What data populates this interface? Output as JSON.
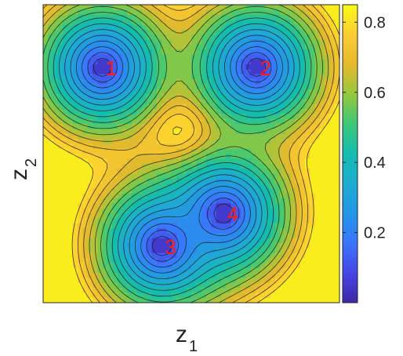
{
  "chart_data": {
    "type": "heatmap",
    "plot_style": "filled contour",
    "title": "",
    "xlabel": "z",
    "xlabel_subscript": "1",
    "ylabel": "z",
    "ylabel_subscript": "2",
    "x_ticks": [],
    "y_ticks": [],
    "colorbar": {
      "colormap": "parula",
      "range": [
        0.0,
        0.85
      ],
      "ticks": [
        "0.2",
        "0.4",
        "0.6",
        "0.8"
      ],
      "tick_values": [
        0.2,
        0.4,
        0.6,
        0.8
      ]
    },
    "contour_levels": [
      0.1,
      0.15,
      0.2,
      0.25,
      0.3,
      0.35,
      0.4,
      0.45,
      0.5,
      0.55,
      0.6,
      0.65,
      0.7,
      0.75,
      0.8
    ],
    "domain": {
      "x": [
        0,
        1
      ],
      "y": [
        0,
        1
      ]
    },
    "minima": [
      {
        "label": "1",
        "x": 0.2,
        "y": 0.79
      },
      {
        "label": "2",
        "x": 0.72,
        "y": 0.79
      },
      {
        "label": "3",
        "x": 0.4,
        "y": 0.19
      },
      {
        "label": "4",
        "x": 0.61,
        "y": 0.3
      }
    ],
    "max_point": {
      "x": 0.465,
      "y": 0.57,
      "value": 0.83
    }
  }
}
